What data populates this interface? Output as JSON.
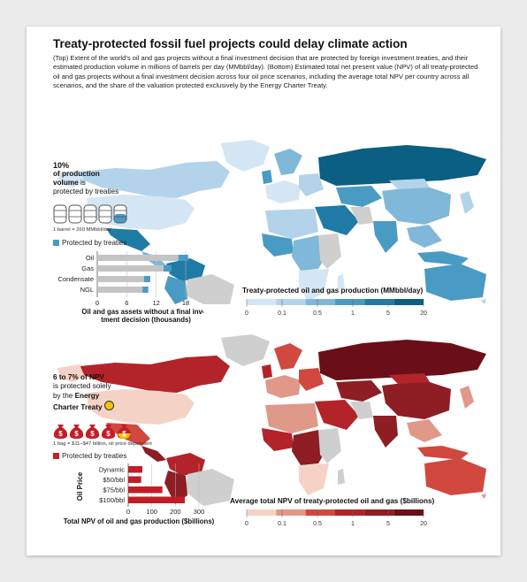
{
  "title": "Treaty-protected fossil fuel projects could delay climate action",
  "subtitle": "(Top) Extent of the world’s oil and gas projects without a final investment decision that are protected by foreign investment treaties, and their estimated production volume in millions of barrels per day (MMbbl/day). (Bottom) Estimated total net present value (NPV) of all treaty-protected oil and gas projects without a final investment decision across four oil price scenarios, including the average total NPV per country across all scenarios, and the share of the valuation protected exclusively by the Energy Charter Treaty.",
  "top": {
    "stat_line1": "10%",
    "stat_line2": "of production",
    "stat_line3": "volume",
    "stat_line3b": " is",
    "stat_line4": "protected by treaties",
    "barrel_note": "1 barrel = 260 MMbbl/day",
    "legend_label": "Protected by treaties",
    "map_title": "Treaty-protected oil and gas production (MMbbl/day)",
    "scale_ticks": [
      "0",
      "0.1",
      "0.5",
      "1",
      "5",
      "20"
    ]
  },
  "bottom": {
    "stat_line1": "6 to 7% of NPV",
    "stat_line2": "is protected solely",
    "stat_line3": "by the ",
    "stat_line3b": "Energy",
    "stat_line4": "Charter Treaty",
    "bag_note": "1 bag = $11–$47 billion, oil price dependent",
    "legend_label": "Protected by treaties",
    "map_title": "Average total NPV of treaty-protected oil and gas ($billions)",
    "scale_ticks": [
      "0",
      "0.1",
      "0.5",
      "1",
      "5",
      "20"
    ]
  },
  "colors": {
    "blue_scale": [
      "#d4e6f3",
      "#b3d3ea",
      "#7fb8d8",
      "#4a9bc4",
      "#1f7ba6",
      "#0b5f83"
    ],
    "red_scale": [
      "#f4d3c6",
      "#e09889",
      "#d1483f",
      "#b3232a",
      "#8e1d24",
      "#6a0f18"
    ],
    "gray": "#cfcfcf",
    "bar_gray": "#c4c4c4",
    "bar_blue": "#4a9bc4",
    "bar_red": "#c21d26",
    "bag_red": "#c21d26",
    "bag_yellow": "#f5c400"
  },
  "chart_data": [
    {
      "type": "bar",
      "orientation": "horizontal",
      "categories": [
        "Oil",
        "Gas",
        "Condensate",
        "NGL"
      ],
      "series": [
        {
          "name": "",
          "values": [
            16.5,
            13.5,
            9.5,
            9.2
          ]
        },
        {
          "name": "Protected by treaties",
          "values": [
            2.0,
            1.6,
            1.3,
            1.2
          ]
        }
      ],
      "xlabel": "Oil and gas assets without a final investment decision (thousands)",
      "xticks": [
        0,
        6,
        12,
        18
      ],
      "xlim": [
        0,
        18
      ]
    },
    {
      "type": "bar",
      "orientation": "horizontal",
      "categories": [
        "Dynamic",
        "$50/bbl",
        "$75/bbl",
        "$100/bbl"
      ],
      "series": [
        {
          "name": "Protected by treaties",
          "values": [
            60,
            55,
            145,
            240
          ]
        }
      ],
      "xlabel": "Total NPV of oil and gas production ($billions)",
      "ylabel": "Oil Price",
      "xticks": [
        0,
        100,
        200,
        300
      ],
      "xlim": [
        0,
        300
      ]
    }
  ]
}
